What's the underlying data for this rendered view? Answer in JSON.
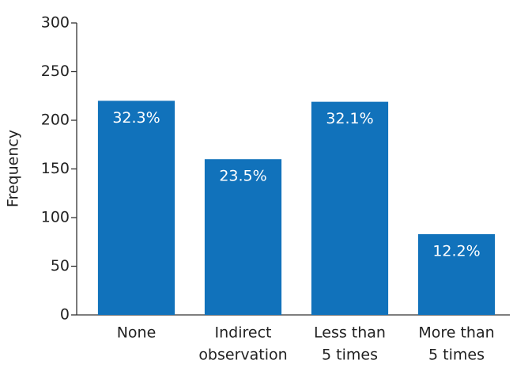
{
  "chart_data": {
    "type": "bar",
    "y_label": "Frequency",
    "categories": [
      [
        "None"
      ],
      [
        "Indirect",
        "observation"
      ],
      [
        "Less than",
        "5 times"
      ],
      [
        "More than",
        "5 times"
      ]
    ],
    "values": [
      220,
      160,
      219,
      83
    ],
    "bar_labels": [
      "32.3%",
      "23.5%",
      "32.1%",
      "12.2%"
    ],
    "color": "#1172bb",
    "ylim": [
      0,
      300
    ],
    "yticks": [
      0,
      50,
      100,
      150,
      200,
      250,
      300
    ],
    "grid": false
  }
}
